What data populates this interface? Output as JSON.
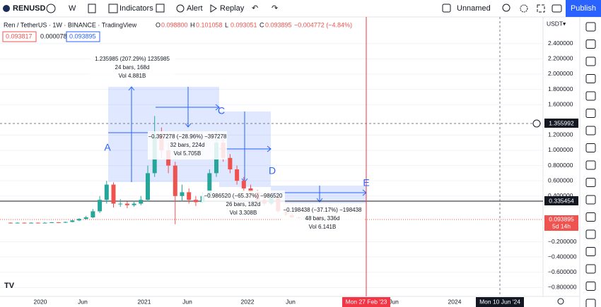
{
  "toolbar": {
    "symbol": "RENUSD",
    "interval": "W",
    "indicators": "Indicators",
    "alert": "Alert",
    "replay": "Replay",
    "layout": "Unnamed",
    "publish": "Publish"
  },
  "legend": {
    "title": "Ren / TetherUS · 1W · BINANCE · TradingView",
    "o_label": "O",
    "o": "0.098800",
    "h_label": "H",
    "h": "0.101058",
    "l_label": "L",
    "l": "0.093051",
    "c_label": "C",
    "c": "0.093895",
    "change": "−0.004772 (−4.84%)",
    "boxes": [
      "0.093817",
      "0.000078",
      "0.093895"
    ]
  },
  "chart": {
    "type": "candlestick",
    "currency": "USDT",
    "ylim": [
      -0.917,
      2.75
    ],
    "yticks": [
      {
        "value": 2.4,
        "label": "2.400000"
      },
      {
        "value": 2.2,
        "label": "2.200000"
      },
      {
        "value": 2.0,
        "label": "2.000000"
      },
      {
        "value": 1.8,
        "label": "1.800000"
      },
      {
        "value": 1.6,
        "label": "1.600000"
      },
      {
        "value": 1.2,
        "label": "1.200000"
      },
      {
        "value": 1.0,
        "label": "1.000000"
      },
      {
        "value": 0.8,
        "label": "0.800000"
      },
      {
        "value": 0.6,
        "label": "0.600000"
      },
      {
        "value": 0.4,
        "label": "0.400000"
      },
      {
        "value": -0.2,
        "label": "−0.200000"
      },
      {
        "value": -0.4,
        "label": "−0.400000"
      },
      {
        "value": -0.6,
        "label": "−0.600000"
      },
      {
        "value": -0.8,
        "label": "−0.800000"
      }
    ],
    "up_color": "#26a69a",
    "down_color": "#ef5350",
    "candles": [
      [
        0.05,
        0.055,
        0.04,
        0.045
      ],
      [
        0.045,
        0.055,
        0.042,
        0.05
      ],
      [
        0.05,
        0.054,
        0.044,
        0.048
      ],
      [
        0.048,
        0.056,
        0.045,
        0.05
      ],
      [
        0.05,
        0.053,
        0.04,
        0.045
      ],
      [
        0.045,
        0.056,
        0.043,
        0.05
      ],
      [
        0.05,
        0.06,
        0.046,
        0.055
      ],
      [
        0.055,
        0.058,
        0.045,
        0.05
      ],
      [
        0.05,
        0.065,
        0.048,
        0.06
      ],
      [
        0.06,
        0.09,
        0.055,
        0.08
      ],
      [
        0.08,
        0.11,
        0.07,
        0.1
      ],
      [
        0.1,
        0.14,
        0.09,
        0.12
      ],
      [
        0.12,
        0.23,
        0.11,
        0.2
      ],
      [
        0.2,
        0.4,
        0.18,
        0.35
      ],
      [
        0.35,
        0.6,
        0.3,
        0.55
      ],
      [
        0.55,
        0.58,
        0.25,
        0.3
      ],
      [
        0.3,
        0.36,
        0.26,
        0.3
      ],
      [
        0.3,
        0.33,
        0.24,
        0.28
      ],
      [
        0.28,
        0.34,
        0.26,
        0.3
      ],
      [
        0.3,
        0.4,
        0.28,
        0.35
      ],
      [
        0.35,
        0.8,
        0.33,
        0.7
      ],
      [
        0.7,
        1.45,
        0.65,
        1.2
      ],
      [
        1.2,
        1.3,
        0.9,
        1.0
      ],
      [
        1.0,
        1.1,
        0.7,
        0.8
      ],
      [
        0.8,
        0.85,
        0.03,
        0.4
      ],
      [
        0.4,
        0.55,
        0.33,
        0.45
      ],
      [
        0.45,
        0.5,
        0.3,
        0.35
      ],
      [
        0.35,
        0.4,
        0.27,
        0.32
      ],
      [
        0.32,
        0.45,
        0.3,
        0.4
      ],
      [
        0.4,
        0.75,
        0.38,
        0.7
      ],
      [
        0.7,
        1.25,
        0.65,
        1.1
      ],
      [
        1.1,
        1.15,
        0.85,
        0.9
      ],
      [
        0.9,
        0.95,
        0.7,
        0.75
      ],
      [
        0.75,
        0.8,
        0.55,
        0.6
      ],
      [
        0.6,
        0.65,
        0.45,
        0.5
      ],
      [
        0.5,
        0.55,
        0.4,
        0.45
      ],
      [
        0.45,
        0.48,
        0.32,
        0.35
      ],
      [
        0.35,
        0.38,
        0.27,
        0.3
      ],
      [
        0.3,
        0.42,
        0.28,
        0.38
      ],
      [
        0.38,
        0.4,
        0.18,
        0.2
      ],
      [
        0.2,
        0.22,
        0.13,
        0.15
      ],
      [
        0.15,
        0.17,
        0.11,
        0.12
      ],
      [
        0.12,
        0.13,
        0.1,
        0.11
      ],
      [
        0.11,
        0.14,
        0.1,
        0.12
      ],
      [
        0.12,
        0.15,
        0.11,
        0.13
      ],
      [
        0.13,
        0.14,
        0.09,
        0.1
      ],
      [
        0.1,
        0.115,
        0.09,
        0.1
      ],
      [
        0.0988,
        0.101058,
        0.093051,
        0.093895
      ]
    ],
    "price_tags": {
      "crosshair": "1.355992",
      "line": "0.335454",
      "last": "0.093895",
      "countdown": "5d 14h"
    },
    "xlabels": [
      "2020",
      "Jun",
      "2021",
      "Jun",
      "2022",
      "Jun",
      "Jun",
      "2024"
    ],
    "cursor_date": "Mon 27 Feb '23",
    "crosshair_date": "Mon 10 Jun '24",
    "measures": [
      {
        "label": "A",
        "range": "1.235985 (207.29%) 1235985",
        "bars": "24 bars, 168d",
        "vol": "Vol 4.881B"
      },
      {
        "label": "C",
        "range": "−0.397278 (−28.96%) −397278",
        "bars": "32 bars, 224d",
        "vol": "Vol 5.705B"
      },
      {
        "label": "D",
        "range": "−0.986520 (−65.37%) −986520",
        "bars": "26 bars, 182d",
        "vol": "Vol 3.308B"
      },
      {
        "label": "E",
        "range": "−0.198438 (−37.17%) −198438",
        "bars": "48 bars, 336d",
        "vol": "Vol 6.141B"
      }
    ]
  }
}
